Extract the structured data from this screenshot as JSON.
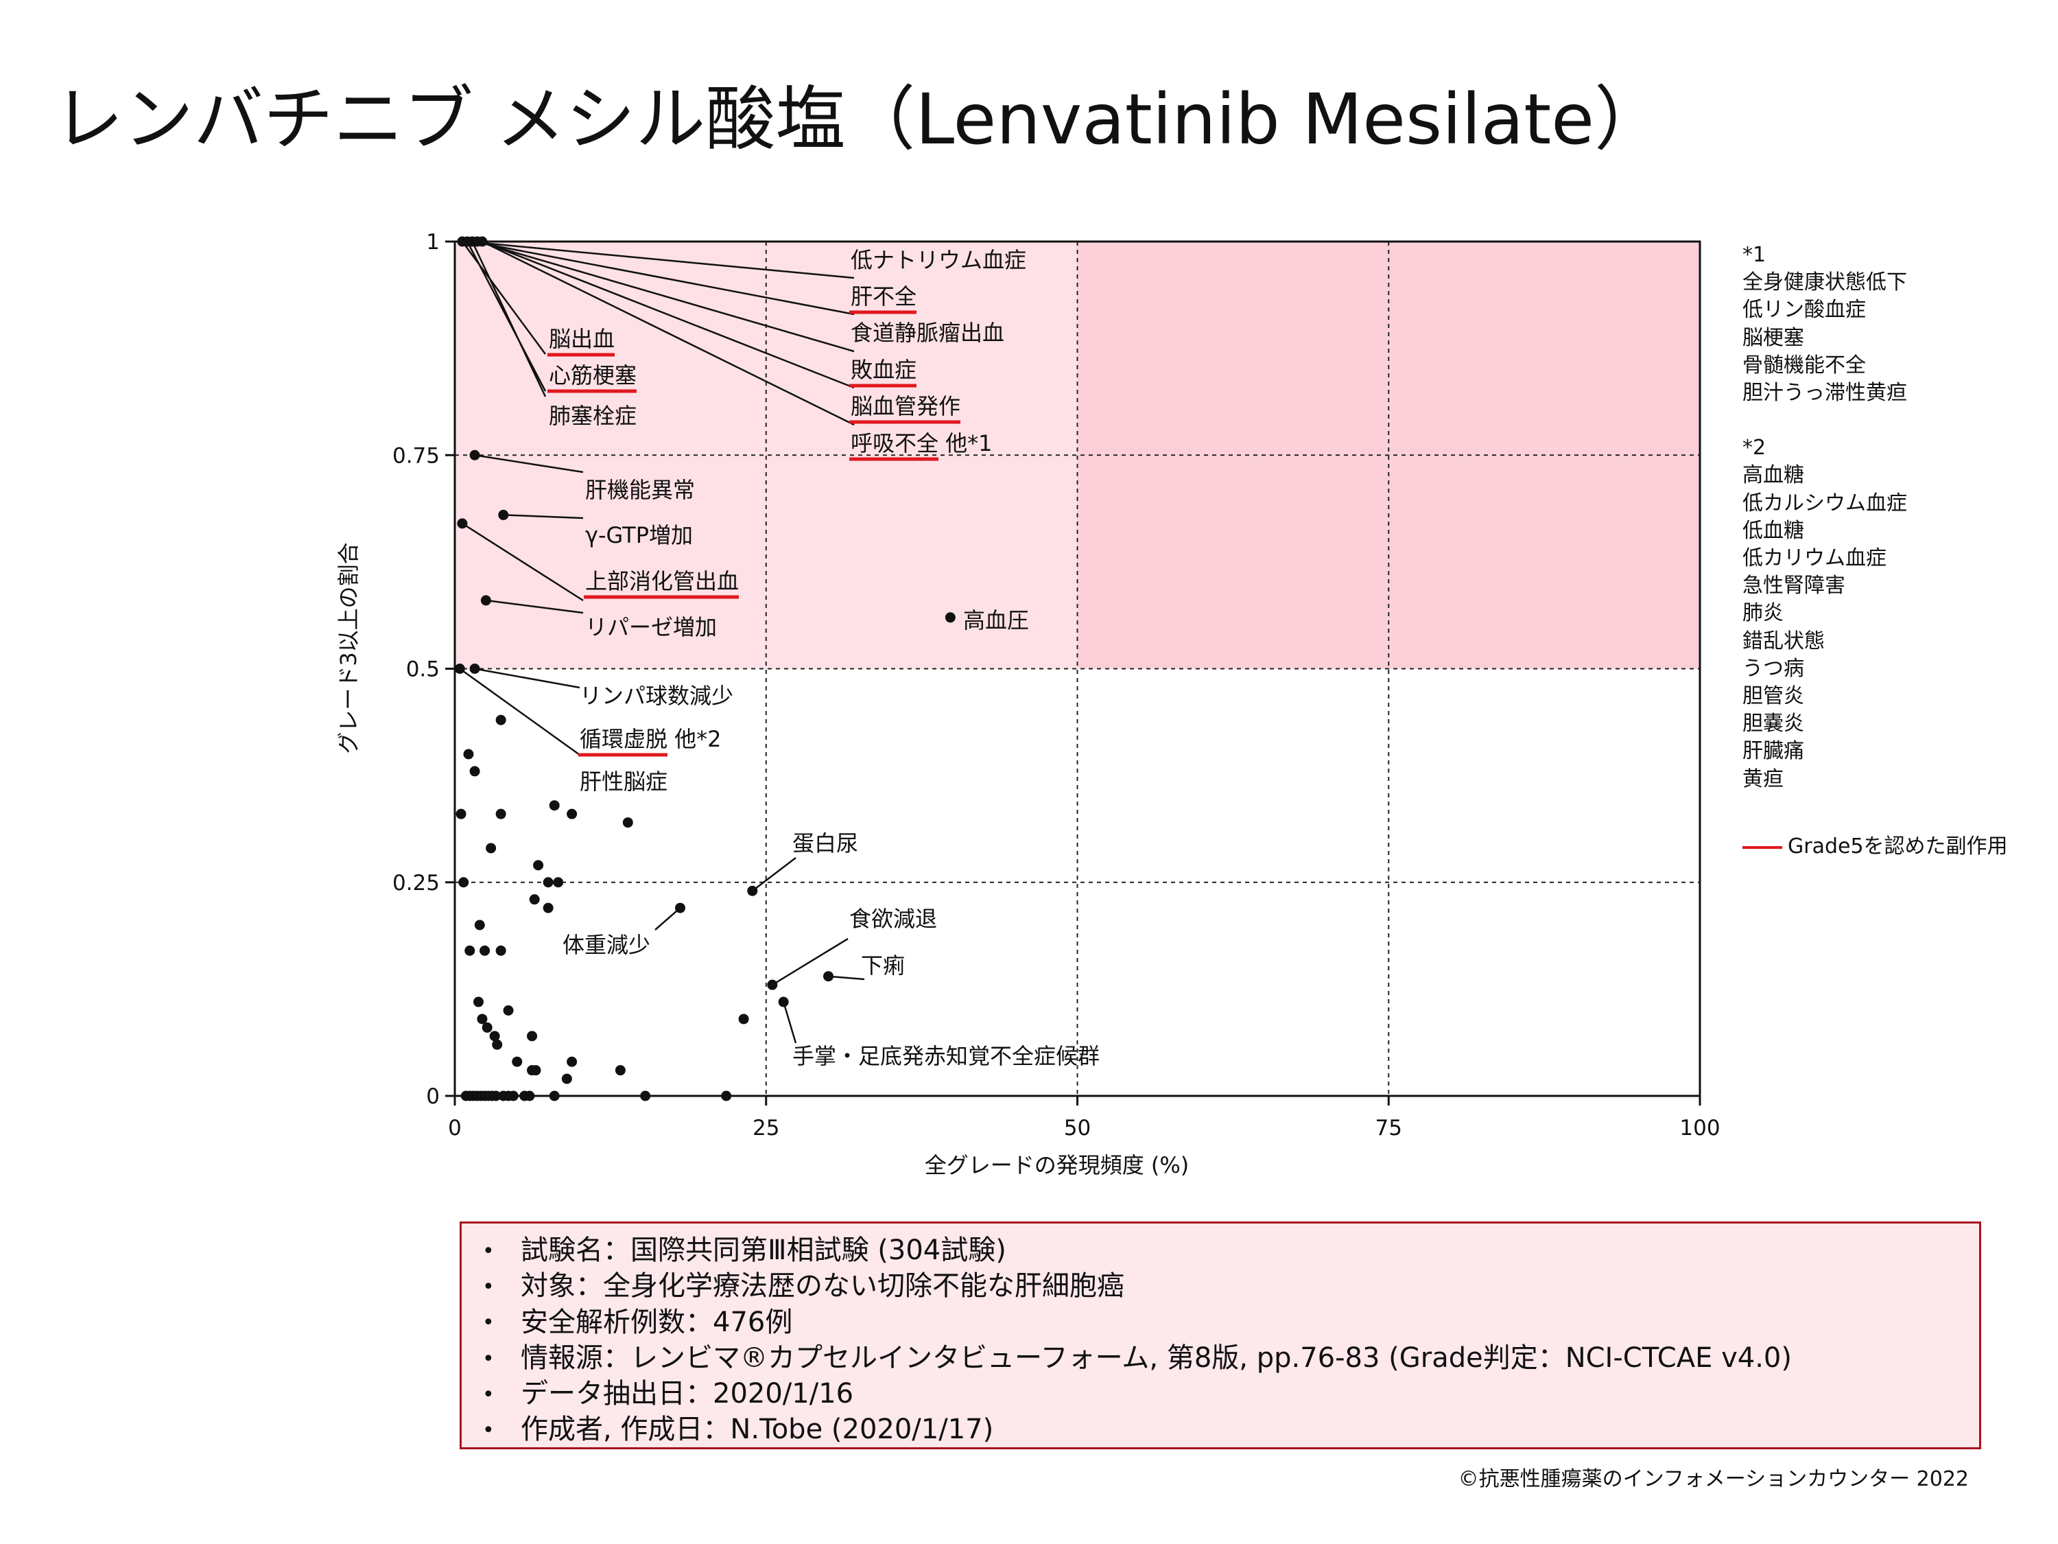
{
  "title": "レンバチニブ メシル酸塩（Lenvatinib Mesilate）",
  "chart_data": {
    "type": "scatter",
    "xlabel": "全グレードの発現頻度 (%)",
    "ylabel": "グレード3以上の割合",
    "xlim": [
      0,
      100
    ],
    "ylim": [
      0,
      1
    ],
    "xticks": [
      "0",
      "25",
      "50",
      "75",
      "100"
    ],
    "yticks": [
      "0",
      "0.25",
      "0.5",
      "0.75",
      "1"
    ],
    "grid": "dotted at 25, 50, 75 (x) and 0.25, 0.5, 0.75 (y)",
    "highlight": {
      "y_from": 0.5,
      "y_to": 1.0,
      "x_from": 0,
      "x_to": 100,
      "darker_x_from": 50,
      "color": "#fde1e6",
      "dark_color": "#fcd0d9"
    },
    "points": [
      [
        0.6,
        1.0
      ],
      [
        1.0,
        1.0
      ],
      [
        1.4,
        1.0
      ],
      [
        1.8,
        1.0
      ],
      [
        2.2,
        1.0
      ],
      [
        1.6,
        0.75
      ],
      [
        3.9,
        0.68
      ],
      [
        0.6,
        0.67
      ],
      [
        2.5,
        0.58
      ],
      [
        39.8,
        0.56
      ],
      [
        0.4,
        0.5
      ],
      [
        1.6,
        0.5
      ],
      [
        3.7,
        0.44
      ],
      [
        1.1,
        0.4
      ],
      [
        1.6,
        0.38
      ],
      [
        0.5,
        0.33
      ],
      [
        3.7,
        0.33
      ],
      [
        8.0,
        0.34
      ],
      [
        9.4,
        0.33
      ],
      [
        13.9,
        0.32
      ],
      [
        2.9,
        0.29
      ],
      [
        6.7,
        0.27
      ],
      [
        0.7,
        0.25
      ],
      [
        7.5,
        0.25
      ],
      [
        8.3,
        0.25
      ],
      [
        6.4,
        0.23
      ],
      [
        7.5,
        0.22
      ],
      [
        18.1,
        0.22
      ],
      [
        23.9,
        0.24
      ],
      [
        2.0,
        0.2
      ],
      [
        1.2,
        0.17
      ],
      [
        2.4,
        0.17
      ],
      [
        3.7,
        0.17
      ],
      [
        1.9,
        0.11
      ],
      [
        4.3,
        0.1
      ],
      [
        25.5,
        0.13
      ],
      [
        30.0,
        0.14
      ],
      [
        2.2,
        0.09
      ],
      [
        2.6,
        0.08
      ],
      [
        3.2,
        0.07
      ],
      [
        3.4,
        0.06
      ],
      [
        6.2,
        0.07
      ],
      [
        23.2,
        0.09
      ],
      [
        26.4,
        0.11
      ],
      [
        5.0,
        0.04
      ],
      [
        6.2,
        0.03
      ],
      [
        6.5,
        0.03
      ],
      [
        9.4,
        0.04
      ],
      [
        13.3,
        0.03
      ],
      [
        9.0,
        0.02
      ],
      [
        0.9,
        0
      ],
      [
        1.2,
        0
      ],
      [
        1.5,
        0
      ],
      [
        1.8,
        0
      ],
      [
        2.1,
        0
      ],
      [
        2.4,
        0
      ],
      [
        2.7,
        0
      ],
      [
        3.0,
        0
      ],
      [
        3.3,
        0
      ],
      [
        3.9,
        0
      ],
      [
        4.3,
        0
      ],
      [
        4.7,
        0
      ],
      [
        5.6,
        0
      ],
      [
        6.0,
        0
      ],
      [
        8.0,
        0
      ],
      [
        15.3,
        0
      ],
      [
        21.8,
        0
      ]
    ],
    "labels": [
      {
        "text": "低ナトリウム血症",
        "grade5": false
      },
      {
        "text": "肝不全",
        "grade5": true
      },
      {
        "text": "食道静脈瘤出血",
        "grade5": false
      },
      {
        "text": "敗血症",
        "grade5": true
      },
      {
        "text": "脳血管発作",
        "grade5": true
      },
      {
        "text": "呼吸不全",
        "grade5": true,
        "suffix": " 他*1"
      },
      {
        "text": "脳出血",
        "grade5": true
      },
      {
        "text": "心筋梗塞",
        "grade5": true
      },
      {
        "text": "肺塞栓症",
        "grade5": false
      },
      {
        "text": "肝機能異常",
        "grade5": false
      },
      {
        "text": "γ-GTP増加",
        "grade5": false
      },
      {
        "text": "上部消化管出血",
        "grade5": true
      },
      {
        "text": "リパーゼ増加",
        "grade5": false
      },
      {
        "text": "高血圧",
        "grade5": false
      },
      {
        "text": "リンパ球数減少",
        "grade5": false
      },
      {
        "text": "循環虚脱",
        "grade5": true,
        "suffix": " 他*2"
      },
      {
        "text": "肝性脳症",
        "grade5": false
      },
      {
        "text": "蛋白尿",
        "grade5": false
      },
      {
        "text": "体重減少",
        "grade5": false
      },
      {
        "text": "食欲減退",
        "grade5": false
      },
      {
        "text": "下痢",
        "grade5": false
      },
      {
        "text": "手掌・足底発赤知覚不全症候群",
        "grade5": false
      }
    ]
  },
  "footnotes": {
    "note1_title": "*1",
    "note1_items": [
      "全身健康状態低下",
      "低リン酸血症",
      "脳梗塞",
      "骨髄機能不全",
      "胆汁うっ滞性黄疸"
    ],
    "note2_title": "*2",
    "note2_items": [
      "高血糖",
      "低カルシウム血症",
      "低血糖",
      "低カリウム血症",
      "急性腎障害",
      "肺炎",
      "錯乱状態",
      "うつ病",
      "胆管炎",
      "胆嚢炎",
      "肝臓痛",
      "黄疸"
    ]
  },
  "legend": {
    "label": "Grade5を認めた副作用",
    "color": "#e0181e"
  },
  "info": {
    "bullet": "•",
    "items": [
      "試験名：国際共同第Ⅲ相試験 (304試験)",
      "対象：全身化学療法歴のない切除不能な肝細胞癌",
      "安全解析例数：476例",
      "情報源：レンビマ®カプセルインタビューフォーム, 第8版, pp.76-83 (Grade判定：NCI-CTCAE v4.0)",
      "データ抽出日：2020/1/16",
      "作成者, 作成日：N.Tobe (2020/1/17)"
    ]
  },
  "copyright": "©抗悪性腫瘍薬のインフォメーションカウンター 2022"
}
